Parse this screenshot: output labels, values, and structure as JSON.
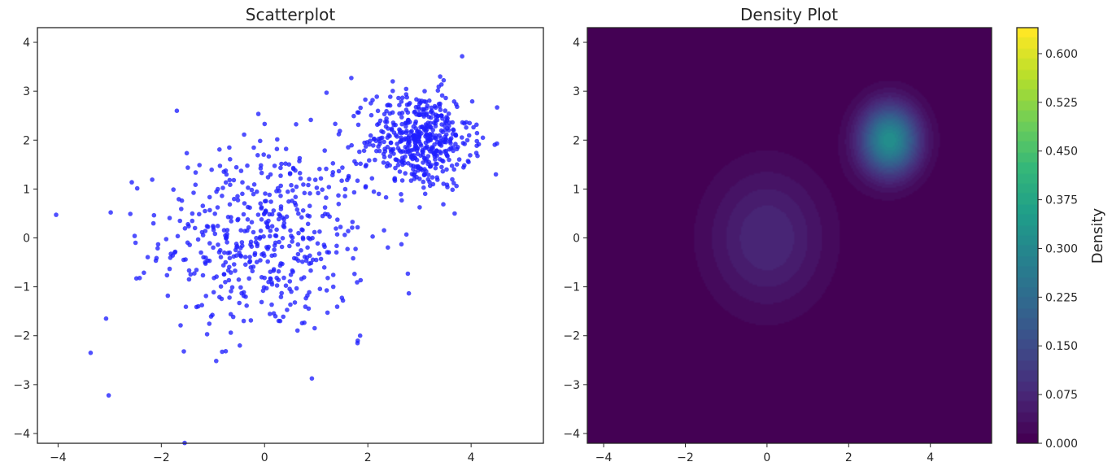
{
  "chart_data": [
    {
      "type": "scatter",
      "title": "Scatterplot",
      "xlabel": "",
      "ylabel": "",
      "xlim": [
        -4.4,
        5.4
      ],
      "ylim": [
        -4.2,
        4.3
      ],
      "xticks": [
        -4,
        -2,
        0,
        2,
        4
      ],
      "yticks": [
        -4,
        -3,
        -2,
        -1,
        0,
        1,
        2,
        3,
        4
      ],
      "grid": false,
      "point_color": "#1f1fff",
      "clusters": [
        {
          "center": [
            0.0,
            0.0
          ],
          "std": [
            1.0,
            1.0
          ],
          "n": 500,
          "description": "broad cluster"
        },
        {
          "center": [
            3.0,
            2.0
          ],
          "std": [
            0.5,
            0.5
          ],
          "n": 500,
          "description": "tight cluster"
        }
      ],
      "highlighted_points": [
        {
          "x": -3.37,
          "y": -2.35
        },
        {
          "x": -3.02,
          "y": -3.22
        },
        {
          "x": -3.07,
          "y": -1.65
        },
        {
          "x": -2.98,
          "y": 0.52
        },
        {
          "x": -2.6,
          "y": 0.49
        },
        {
          "x": -2.5,
          "y": -0.1
        },
        {
          "x": -2.42,
          "y": -0.82
        },
        {
          "x": 1.68,
          "y": 3.27
        },
        {
          "x": 4.48,
          "y": 1.3
        },
        {
          "x": 3.4,
          "y": 3.3
        },
        {
          "x": 1.2,
          "y": 2.97
        },
        {
          "x": 2.65,
          "y": -0.13
        },
        {
          "x": 1.85,
          "y": -2.0
        },
        {
          "x": 1.8,
          "y": -2.15
        },
        {
          "x": -0.48,
          "y": -2.2
        },
        {
          "x": 0.0,
          "y": 2.33
        },
        {
          "x": -1.7,
          "y": 2.6
        }
      ]
    },
    {
      "type": "heatmap",
      "title": "Density Plot",
      "xlabel": "",
      "ylabel": "",
      "xlim": [
        -4.4,
        5.5
      ],
      "ylim": [
        -4.2,
        4.3
      ],
      "xticks": [
        -4,
        -2,
        0,
        2,
        4
      ],
      "yticks": [
        -4,
        -3,
        -2,
        -1,
        0,
        1,
        2,
        3,
        4
      ],
      "colormap": "viridis",
      "components": [
        {
          "center": [
            0.0,
            0.0
          ],
          "std": 1.0,
          "weight": 0.5
        },
        {
          "center": [
            3.0,
            2.0
          ],
          "std": 0.5,
          "weight": 0.5
        }
      ],
      "colorbar": {
        "label": "Density",
        "min": 0.0,
        "max": 0.64,
        "ticks": [
          "0.000",
          "0.075",
          "0.150",
          "0.225",
          "0.300",
          "0.375",
          "0.450",
          "0.525",
          "0.600"
        ],
        "levels": 40
      }
    }
  ]
}
